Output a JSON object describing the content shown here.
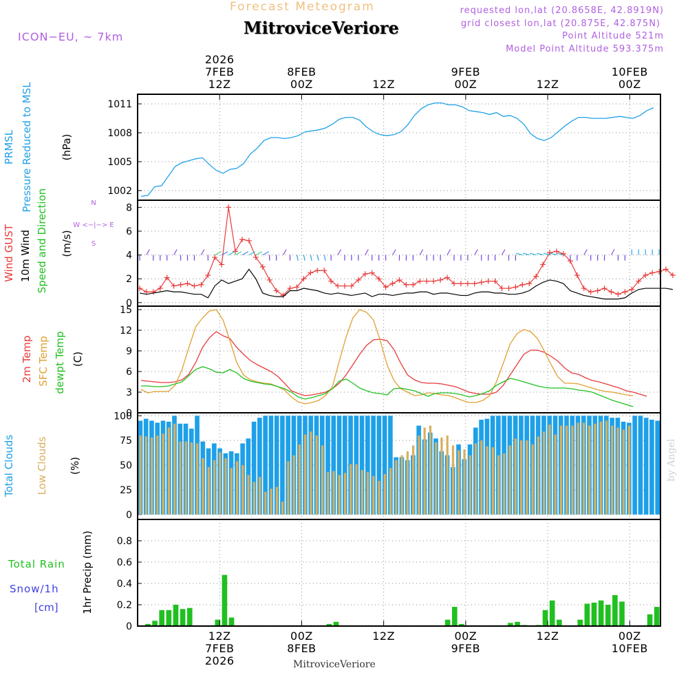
{
  "header": {
    "subtitle": "Forecast Meteogram",
    "location": "MitroviceVeriore",
    "model": "ICON−EU, ~ 7km",
    "requested": "requested lon,lat (20.8658E, 42.8919N)",
    "closest": "grid closest lon,lat (20.875E, 42.875N)",
    "point_alt": "Point Altitude 521m",
    "model_alt": "Model Point Altitude 593.375m",
    "credit": "by Angel",
    "bottom_label": "MitroviceVeriore"
  },
  "colors": {
    "pressure": "#1ea0e8",
    "gust": "#e83a3a",
    "wind": "#000000",
    "temp2m": "#e83a3a",
    "sfc": "#e0a030",
    "dewpt": "#20c020",
    "total_clouds": "#1ea0e8",
    "low_clouds": "#d8b060",
    "rain": "#20c020",
    "snow": "#4040e0",
    "purple": "#b060e0",
    "header_orange": "#f0c080"
  },
  "time_axis": {
    "top_labels": [
      {
        "h": 12,
        "lines": [
          "2026",
          "7FEB",
          "12Z"
        ]
      },
      {
        "h": 24,
        "lines": [
          "8FEB",
          "00Z"
        ]
      },
      {
        "h": 36,
        "lines": [
          "12Z"
        ]
      },
      {
        "h": 48,
        "lines": [
          "9FEB",
          "00Z"
        ]
      },
      {
        "h": 60,
        "lines": [
          "12Z"
        ]
      },
      {
        "h": 72,
        "lines": [
          "10FEB",
          "00Z"
        ]
      }
    ],
    "bottom_labels": [
      {
        "h": 12,
        "lines": [
          "12Z",
          "7FEB",
          "2026"
        ]
      },
      {
        "h": 24,
        "lines": [
          "00Z",
          "8FEB"
        ]
      },
      {
        "h": 36,
        "lines": [
          "12Z"
        ]
      },
      {
        "h": 48,
        "lines": [
          "00Z",
          "9FEB"
        ]
      },
      {
        "h": 60,
        "lines": [
          "12Z"
        ]
      },
      {
        "h": 72,
        "lines": [
          "00Z",
          "10FEB"
        ]
      }
    ]
  },
  "chart_data": [
    {
      "type": "line",
      "title": "PRMSL Pressure Reduced to MSL",
      "ylabel_lines": [
        "PRMSL",
        "Pressure Reduced to MSL"
      ],
      "units": "(hPa)",
      "ylim": [
        1001,
        1012
      ],
      "yticks": [
        1002,
        1005,
        1008,
        1011
      ],
      "x_start_hour": 0,
      "x_step_hours": 1,
      "series": [
        {
          "name": "PRMSL",
          "values": [
            1001.4,
            1001.5,
            1002.4,
            1002.5,
            1003.5,
            1004.5,
            1004.9,
            1005.1,
            1005.3,
            1005.4,
            1004.7,
            1004.1,
            1003.8,
            1004.2,
            1004.3,
            1004.8,
            1005.8,
            1006.4,
            1007.2,
            1007.5,
            1007.5,
            1007.4,
            1007.5,
            1007.7,
            1008.1,
            1008.2,
            1008.3,
            1008.5,
            1008.9,
            1009.4,
            1009.6,
            1009.6,
            1009.3,
            1008.6,
            1008.1,
            1007.8,
            1007.7,
            1007.8,
            1008.1,
            1008.8,
            1009.8,
            1010.5,
            1010.9,
            1011.1,
            1011.1,
            1010.9,
            1010.9,
            1010.7,
            1010.3,
            1010.2,
            1010.1,
            1009.9,
            1010.1,
            1009.7,
            1009.8,
            1009.5,
            1008.9,
            1007.9,
            1007.4,
            1007.2,
            1007.5,
            1008.1,
            1008.7,
            1009.2,
            1009.6,
            1009.6,
            1009.5,
            1009.5,
            1009.5,
            1009.6,
            1009.7,
            1009.6,
            1009.5,
            1009.8,
            1010.3,
            1010.6
          ]
        }
      ]
    },
    {
      "type": "line",
      "title": "Wind GUST / 10m Wind Speed and Direction",
      "ylabel_lines": [
        "Wind GUST",
        "10m Wind",
        "Speed and Direction"
      ],
      "units": "(m/s)",
      "compass": [
        "N",
        "W <−|−> E",
        "S"
      ],
      "ylim": [
        -0.3,
        8.6
      ],
      "yticks": [
        0,
        2,
        4,
        6,
        8
      ],
      "x_start_hour": 0,
      "x_step_hours": 1,
      "series": [
        {
          "name": "Wind GUST",
          "values": [
            1.2,
            0.9,
            0.9,
            1.2,
            2.1,
            1.4,
            1.5,
            1.6,
            1.4,
            1.5,
            2.3,
            3.8,
            3.2,
            8.0,
            4.3,
            5.3,
            5.2,
            3.8,
            3.0,
            1.9,
            1.0,
            0.6,
            1.2,
            1.3,
            2.0,
            2.5,
            2.7,
            2.7,
            1.8,
            1.4,
            1.4,
            1.4,
            1.9,
            2.4,
            2.5,
            2.0,
            1.3,
            1.6,
            1.9,
            1.5,
            1.5,
            1.8,
            1.8,
            1.8,
            1.9,
            2.1,
            1.6,
            1.6,
            1.6,
            1.6,
            1.7,
            1.8,
            1.8,
            1.2,
            1.2,
            1.3,
            1.5,
            1.6,
            2.2,
            3.2,
            4.2,
            4.3,
            4.1,
            3.5,
            2.3,
            1.2,
            0.9,
            1.0,
            1.2,
            0.9,
            0.7,
            0.9,
            1.1,
            1.8,
            2.3,
            2.5,
            2.6,
            2.8,
            2.3
          ]
        },
        {
          "name": "10m Wind",
          "values": [
            0.8,
            0.7,
            0.8,
            0.9,
            1.0,
            0.9,
            0.9,
            0.8,
            0.7,
            0.7,
            0.4,
            1.4,
            1.9,
            1.6,
            1.8,
            2.0,
            2.8,
            2.0,
            0.8,
            0.6,
            0.5,
            0.5,
            1.0,
            1.0,
            1.2,
            1.1,
            1.0,
            0.8,
            0.7,
            0.8,
            0.7,
            0.6,
            0.7,
            0.8,
            0.5,
            0.7,
            0.7,
            0.6,
            0.7,
            0.8,
            0.8,
            0.9,
            0.9,
            0.7,
            0.8,
            0.8,
            0.7,
            0.6,
            0.6,
            0.8,
            0.9,
            0.9,
            0.8,
            0.8,
            0.7,
            0.7,
            0.8,
            1.0,
            1.4,
            1.7,
            1.9,
            1.8,
            1.6,
            1.0,
            0.8,
            0.6,
            0.5,
            0.4,
            0.3,
            0.3,
            0.3,
            0.4,
            0.8,
            1.1,
            1.2,
            1.2,
            1.2,
            1.2,
            1.1
          ]
        }
      ]
    },
    {
      "type": "line",
      "title": "2m Temp / SFC Temp / dewpt Temp",
      "ylabel_lines": [
        "2m Temp",
        "SFC Temp",
        "dewpt Temp"
      ],
      "units": "(C)",
      "ylim": [
        0,
        15.5
      ],
      "yticks": [
        0,
        3,
        6,
        9,
        12,
        15
      ],
      "x_start_hour": 0,
      "x_step_hours": 1,
      "series": [
        {
          "name": "2m Temp",
          "values": [
            4.7,
            4.6,
            4.5,
            4.4,
            4.4,
            4.5,
            4.8,
            5.6,
            7.3,
            9.5,
            10.9,
            11.8,
            11.2,
            10.8,
            9.5,
            8.5,
            7.6,
            7.0,
            6.5,
            6.0,
            5.3,
            4.3,
            3.2,
            2.8,
            2.5,
            2.6,
            2.8,
            3.0,
            3.5,
            4.3,
            5.5,
            7.0,
            8.5,
            9.8,
            10.6,
            10.7,
            10.5,
            9.2,
            7.2,
            5.5,
            4.8,
            4.4,
            4.3,
            4.3,
            4.2,
            4.0,
            3.8,
            3.4,
            3.0,
            2.8,
            2.7,
            2.7,
            3.0,
            4.0,
            5.5,
            7.0,
            8.5,
            9.1,
            9.1,
            8.8,
            8.2,
            7.5,
            6.5,
            5.8,
            5.6,
            5.1,
            4.7,
            4.5,
            4.2,
            3.9,
            3.6,
            3.2,
            3.0,
            2.7,
            2.4
          ]
        },
        {
          "name": "SFC Temp",
          "values": [
            3.4,
            2.9,
            3.1,
            3.1,
            3.1,
            4.0,
            6.3,
            9.5,
            12.5,
            13.8,
            14.8,
            15.0,
            13.5,
            10.5,
            7.3,
            5.5,
            4.8,
            4.5,
            4.3,
            4.2,
            3.8,
            3.3,
            2.3,
            1.6,
            1.3,
            1.5,
            1.8,
            2.5,
            3.8,
            7.5,
            11.0,
            13.8,
            15.0,
            14.6,
            13.5,
            10.5,
            7.0,
            4.7,
            3.5,
            3.0,
            2.5,
            2.6,
            2.9,
            2.8,
            2.6,
            2.5,
            2.2,
            1.8,
            1.5,
            1.5,
            1.8,
            2.5,
            4.5,
            7.2,
            10.0,
            11.5,
            12.1,
            11.8,
            10.8,
            9.0,
            7.0,
            5.2,
            4.3,
            4.3,
            4.2,
            3.9,
            3.6,
            3.3,
            3.1,
            3.0,
            2.8,
            2.6,
            2.5
          ]
        },
        {
          "name": "dewpt Temp",
          "values": [
            3.9,
            3.9,
            3.8,
            3.8,
            3.9,
            4.2,
            4.5,
            5.4,
            6.3,
            6.7,
            6.4,
            5.9,
            5.8,
            6.3,
            5.8,
            5.0,
            4.6,
            4.4,
            4.2,
            4.1,
            3.8,
            3.5,
            3.0,
            2.3,
            2.0,
            2.2,
            2.5,
            2.8,
            3.5,
            4.6,
            4.9,
            4.3,
            3.6,
            3.2,
            2.9,
            2.8,
            2.6,
            3.5,
            3.6,
            3.4,
            3.2,
            2.8,
            2.4,
            2.8,
            2.9,
            2.9,
            2.8,
            2.6,
            2.3,
            2.5,
            2.8,
            3.2,
            4.0,
            4.5,
            5.0,
            4.8,
            4.5,
            4.2,
            3.9,
            3.7,
            3.6,
            3.6,
            3.6,
            3.5,
            3.3,
            3.2,
            3.0,
            2.6,
            2.2,
            1.8,
            1.5,
            1.2,
            0.9
          ]
        }
      ]
    },
    {
      "type": "bar",
      "title": "Total Clouds / Low Clouds",
      "ylabel_lines": [
        "Total Clouds",
        "Low Clouds"
      ],
      "units": "(%)",
      "ylim": [
        -5,
        103
      ],
      "yticks": [
        0,
        25,
        50,
        75,
        100
      ],
      "x_start_hour": 0,
      "x_step_hours": 1,
      "series": [
        {
          "name": "Total Clouds",
          "values": [
            95,
            97,
            95,
            93,
            95,
            94,
            100,
            92,
            92,
            87,
            100,
            74,
            67,
            72,
            67,
            62,
            64,
            62,
            72,
            77,
            94,
            98,
            100,
            100,
            100,
            100,
            100,
            100,
            100,
            100,
            100,
            100,
            100,
            100,
            100,
            100,
            100,
            100,
            100,
            100,
            100,
            100,
            100,
            100,
            100,
            58,
            58,
            55,
            60,
            90,
            76,
            83,
            77,
            64,
            60,
            48,
            71,
            56,
            71,
            88,
            96,
            97,
            100,
            100,
            100,
            100,
            100,
            100,
            100,
            100,
            100,
            100,
            100,
            100,
            100,
            100,
            100,
            100,
            100,
            100,
            100,
            100,
            100,
            98,
            98,
            94,
            93,
            100,
            100,
            98,
            96,
            95
          ]
        },
        {
          "name": "Low Clouds",
          "values": [
            80,
            79,
            78,
            80,
            82,
            88,
            92,
            74,
            74,
            73,
            72,
            57,
            48,
            55,
            63,
            57,
            47,
            54,
            50,
            40,
            33,
            38,
            23,
            26,
            28,
            13,
            54,
            60,
            71,
            81,
            84,
            80,
            70,
            43,
            44,
            40,
            42,
            51,
            51,
            45,
            43,
            39,
            34,
            41,
            47,
            55,
            60,
            64,
            70,
            80,
            88,
            90,
            73,
            78,
            80,
            70,
            65,
            66,
            60,
            72,
            75,
            69,
            68,
            60,
            62,
            70,
            77,
            75,
            75,
            71,
            79,
            84,
            91,
            81,
            90,
            90,
            90,
            93,
            93,
            90,
            92,
            94,
            95,
            90,
            88,
            86,
            90
          ]
        }
      ]
    },
    {
      "type": "bar",
      "title": "1hr Precip (mm)",
      "ylabel_lines": [
        "Total Rain",
        "Snow/1h",
        "[cm]"
      ],
      "units": "1hr Precip (mm)",
      "ylim": [
        0,
        1.0
      ],
      "yticks": [
        0,
        0.2,
        0.4,
        0.6,
        0.8
      ],
      "x_start_hour": 0,
      "x_step_hours": 1,
      "series": [
        {
          "name": "Total Rain",
          "values": [
            0,
            0.02,
            0.05,
            0.15,
            0.15,
            0.2,
            0.16,
            0.17,
            0,
            0,
            0,
            0.06,
            0.48,
            0.08,
            0,
            0,
            0,
            0,
            0,
            0,
            0,
            0,
            0,
            0,
            0,
            0,
            0,
            0.02,
            0.04,
            0,
            0,
            0,
            0,
            0,
            0,
            0,
            0,
            0,
            0,
            0,
            0,
            0,
            0,
            0,
            0.06,
            0.18,
            0.02,
            0,
            0,
            0,
            0,
            0,
            0,
            0.03,
            0.04,
            0.01,
            0,
            0.01,
            0.15,
            0.24,
            0.06,
            0,
            0,
            0.06,
            0.21,
            0.22,
            0.24,
            0.2,
            0.29,
            0.23,
            0,
            0,
            0,
            0.11,
            0.18
          ]
        },
        {
          "name": "Snow/1h",
          "values": [
            0,
            0,
            0,
            0,
            0,
            0,
            0,
            0,
            0,
            0,
            0,
            0,
            0,
            0,
            0,
            0,
            0,
            0,
            0,
            0,
            0,
            0,
            0,
            0,
            0,
            0,
            0,
            0,
            0,
            0,
            0,
            0,
            0,
            0,
            0,
            0,
            0,
            0,
            0,
            0,
            0,
            0,
            0,
            0,
            0,
            0,
            0,
            0,
            0,
            0,
            0,
            0,
            0,
            0,
            0,
            0,
            0,
            0,
            0,
            0,
            0,
            0,
            0,
            0,
            0,
            0,
            0,
            0,
            0,
            0,
            0,
            0,
            0,
            0,
            0,
            0
          ]
        }
      ]
    }
  ]
}
